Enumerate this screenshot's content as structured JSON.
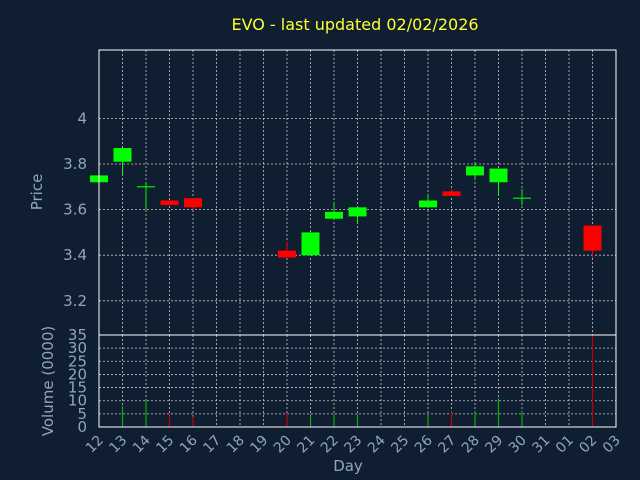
{
  "chart_data": [
    {
      "type": "candlestick",
      "title": "EVO - last updated 02/02/2026",
      "xlabel": "Day",
      "ylabel": "Price",
      "ylim": [
        3.05,
        4.3
      ],
      "yticks": [
        "3.2",
        "3.4",
        "3.6",
        "3.8",
        "4"
      ],
      "grid": true,
      "x": [
        "12",
        "13",
        "14",
        "15",
        "16",
        "17",
        "18",
        "19",
        "20",
        "21",
        "22",
        "23",
        "24",
        "25",
        "26",
        "27",
        "28",
        "29",
        "30",
        "31",
        "01",
        "02",
        "03"
      ],
      "candles": [
        {
          "day": "12",
          "open": 3.72,
          "close": 3.75,
          "high": 3.75,
          "low": 3.72,
          "color": "green"
        },
        {
          "day": "13",
          "open": 3.81,
          "close": 3.87,
          "high": 3.87,
          "low": 3.75,
          "color": "green"
        },
        {
          "day": "14",
          "open": 3.7,
          "close": 3.7,
          "high": 3.72,
          "low": 3.6,
          "color": "green"
        },
        {
          "day": "15",
          "open": 3.64,
          "close": 3.62,
          "high": 3.64,
          "low": 3.62,
          "color": "red"
        },
        {
          "day": "16",
          "open": 3.65,
          "close": 3.61,
          "high": 3.65,
          "low": 3.6,
          "color": "red"
        },
        {
          "day": "20",
          "open": 3.42,
          "close": 3.39,
          "high": 3.46,
          "low": 3.39,
          "color": "red"
        },
        {
          "day": "21",
          "open": 3.4,
          "close": 3.5,
          "high": 3.5,
          "low": 3.4,
          "color": "green"
        },
        {
          "day": "22",
          "open": 3.56,
          "close": 3.59,
          "high": 3.63,
          "low": 3.56,
          "color": "green"
        },
        {
          "day": "23",
          "open": 3.57,
          "close": 3.61,
          "high": 3.61,
          "low": 3.54,
          "color": "green"
        },
        {
          "day": "26",
          "open": 3.61,
          "close": 3.64,
          "high": 3.67,
          "low": 3.61,
          "color": "green"
        },
        {
          "day": "27",
          "open": 3.68,
          "close": 3.66,
          "high": 3.69,
          "low": 3.66,
          "color": "red"
        },
        {
          "day": "28",
          "open": 3.75,
          "close": 3.79,
          "high": 3.8,
          "low": 3.73,
          "color": "green"
        },
        {
          "day": "29",
          "open": 3.72,
          "close": 3.78,
          "high": 3.78,
          "low": 3.66,
          "color": "green"
        },
        {
          "day": "30",
          "open": 3.65,
          "close": 3.65,
          "high": 3.69,
          "low": 3.62,
          "color": "green"
        },
        {
          "day": "02",
          "open": 3.53,
          "close": 3.42,
          "high": 3.53,
          "low": 3.39,
          "color": "red"
        }
      ]
    },
    {
      "type": "bar",
      "xlabel": "Day",
      "ylabel": "Volume (0000)",
      "ylim": [
        0,
        35
      ],
      "yticks": [
        "0",
        "5",
        "10",
        "15",
        "20",
        "25",
        "30",
        "35"
      ],
      "categories": [
        "13",
        "14",
        "15",
        "16",
        "20",
        "21",
        "22",
        "23",
        "26",
        "27",
        "28",
        "29",
        "30",
        "02"
      ],
      "values": [
        8,
        10,
        5,
        4,
        5,
        5,
        5,
        5,
        5,
        6,
        6,
        11,
        6,
        35
      ],
      "colors": [
        "green",
        "green",
        "red",
        "red",
        "red",
        "green",
        "green",
        "green",
        "green",
        "red",
        "green",
        "green",
        "green",
        "red"
      ]
    }
  ],
  "colors": {
    "background": "#0f1e30",
    "up": "#00ff00",
    "down": "#ff0000",
    "up_volume": "#00b400",
    "down_volume": "#c80000",
    "title": "#ffff33",
    "text": "#8fa6c0"
  }
}
